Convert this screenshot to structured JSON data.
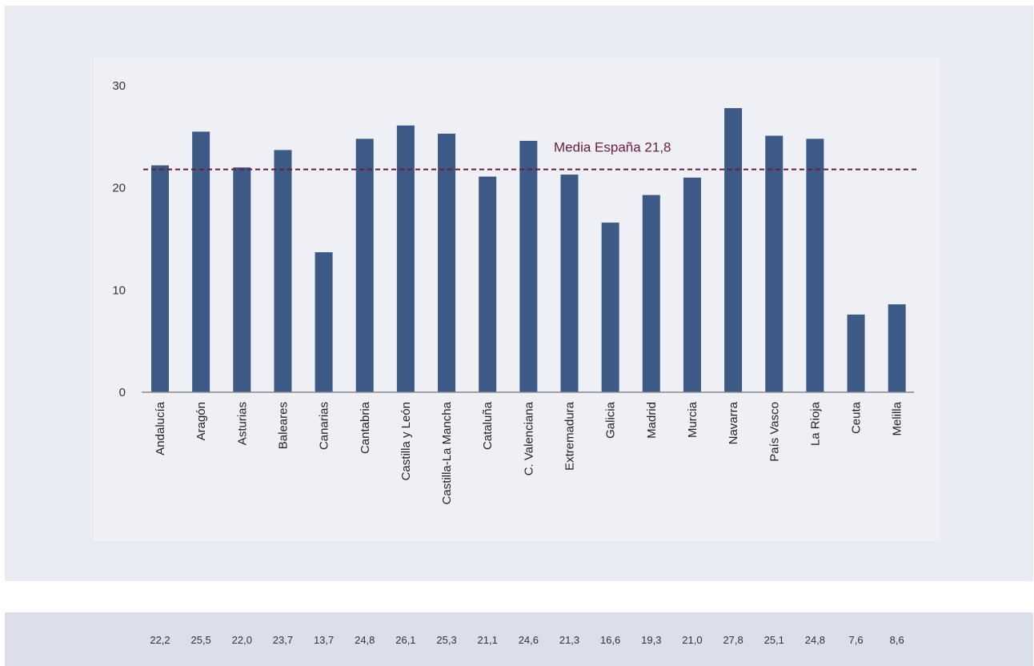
{
  "colors": {
    "bar": "#3c5a85",
    "axis": "#888888",
    "reference_line": "#6b1e3c"
  },
  "chart_data": {
    "type": "bar",
    "categories": [
      "Andalucía",
      "Aragón",
      "Asturias",
      "Baleares",
      "Canarias",
      "Cantabria",
      "Castilla y León",
      "Castilla-La Mancha",
      "Cataluña",
      "C. Valenciana",
      "Extremadura",
      "Galicia",
      "Madrid",
      "Murcia",
      "Navarra",
      "País Vasco",
      "La Rioja",
      "Ceuta",
      "Melilla"
    ],
    "values": [
      22.2,
      25.5,
      22.0,
      23.7,
      13.7,
      24.8,
      26.1,
      25.3,
      21.1,
      24.6,
      21.3,
      16.6,
      19.3,
      21.0,
      27.8,
      25.1,
      24.8,
      7.6,
      8.6
    ],
    "value_labels": [
      "22,2",
      "25,5",
      "22,0",
      "23,7",
      "13,7",
      "24,8",
      "26,1",
      "25,3",
      "21,1",
      "24,6",
      "21,3",
      "16,6",
      "19,3",
      "21,0",
      "27,8",
      "25,1",
      "24,8",
      "7,6",
      "8,6"
    ],
    "ylim": [
      0,
      30
    ],
    "yticks": [
      0,
      10,
      20,
      30
    ],
    "ytick_labels": [
      "0",
      "10",
      "20",
      "30"
    ],
    "grid": false,
    "reference_line": {
      "value": 21.8,
      "label": "Media España 21,8",
      "style": "dashed"
    },
    "category_label_orientation": "vertical"
  }
}
